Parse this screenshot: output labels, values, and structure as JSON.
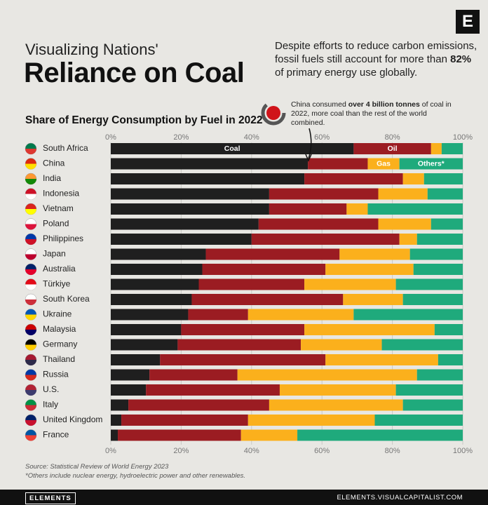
{
  "header": {
    "kicker": "Visualizing Nations'",
    "title": "Reliance on Coal",
    "description": [
      "Despite efforts to reduce carbon emissions, fossil fuels still account for more than ",
      "82%",
      " of primary energy use globally."
    ],
    "logo": "E"
  },
  "chart_data": {
    "type": "stacked-bar-horizontal",
    "title": "Share of Energy Consumption by Fuel in 2022",
    "annotation": [
      "China consumed ",
      "over 4 billion tonnes",
      " of coal in 2022, more coal than the rest of the world combined."
    ],
    "categories": [
      "South Africa",
      "China",
      "India",
      "Indonesia",
      "Vietnam",
      "Poland",
      "Philippines",
      "Japan",
      "Australia",
      "Türkiye",
      "South Korea",
      "Ukraine",
      "Malaysia",
      "Germany",
      "Thailand",
      "Russia",
      "U.S.",
      "Italy",
      "United Kingdom",
      "France"
    ],
    "series": [
      {
        "name": "Coal",
        "color": "#1f1f1f",
        "values": [
          69,
          56,
          55,
          45,
          45,
          42,
          40,
          27,
          26,
          25,
          23,
          22,
          20,
          19,
          14,
          11,
          10,
          5,
          3,
          2
        ]
      },
      {
        "name": "Oil",
        "color": "#9b1c22",
        "values": [
          22,
          17,
          28,
          31,
          22,
          34,
          42,
          38,
          35,
          30,
          43,
          17,
          35,
          35,
          47,
          25,
          38,
          40,
          36,
          35
        ]
      },
      {
        "name": "Gas",
        "color": "#fbb01c",
        "values": [
          3,
          9,
          6,
          14,
          6,
          15,
          5,
          20,
          25,
          26,
          17,
          30,
          37,
          23,
          32,
          51,
          33,
          38,
          36,
          16
        ]
      },
      {
        "name": "Others*",
        "color": "#1faa7c",
        "values": [
          6,
          18,
          11,
          10,
          27,
          9,
          13,
          15,
          14,
          19,
          17,
          31,
          8,
          23,
          7,
          13,
          19,
          17,
          25,
          47
        ]
      }
    ],
    "xlim": [
      0,
      100
    ],
    "xticks": [
      {
        "value": 0,
        "label": "0%"
      },
      {
        "value": 20,
        "label": "20%"
      },
      {
        "value": 40,
        "label": "40%"
      },
      {
        "value": 60,
        "label": "60%"
      },
      {
        "value": 80,
        "label": "80%"
      },
      {
        "value": 100,
        "label": "100%"
      }
    ],
    "grid": true,
    "source": "Source: Statistical Review of World Energy 2023",
    "note": "*Others include nuclear energy, hydroelectric power and other renewables."
  },
  "footer": {
    "brand": "ELEMENTS",
    "site": "ELEMENTS.VISUALCAPITALIST.COM"
  }
}
